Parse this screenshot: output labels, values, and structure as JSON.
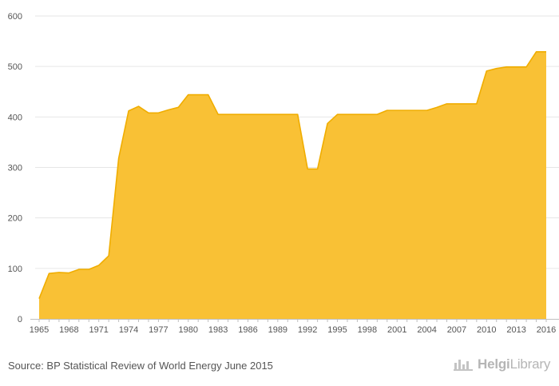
{
  "chart_data": {
    "type": "area",
    "x": [
      1965,
      1966,
      1967,
      1968,
      1969,
      1970,
      1971,
      1972,
      1973,
      1974,
      1975,
      1976,
      1977,
      1978,
      1979,
      1980,
      1981,
      1982,
      1983,
      1984,
      1985,
      1986,
      1987,
      1988,
      1989,
      1990,
      1991,
      1992,
      1993,
      1994,
      1995,
      1996,
      1997,
      1998,
      1999,
      2000,
      2001,
      2002,
      2003,
      2004,
      2005,
      2006,
      2007,
      2008,
      2009,
      2010,
      2011,
      2012,
      2013,
      2014,
      2015,
      2016
    ],
    "series": [
      {
        "values": [
          40,
          90,
          92,
          91,
          98,
          98,
          106,
          125,
          318,
          412,
          421,
          408,
          408,
          414,
          419,
          444,
          444,
          444,
          405,
          405,
          405,
          405,
          405,
          405,
          405,
          405,
          405,
          297,
          297,
          387,
          405,
          405,
          405,
          405,
          405,
          413,
          413,
          413,
          413,
          413,
          419,
          426,
          426,
          426,
          426,
          491,
          496,
          499,
          499,
          499,
          529,
          529
        ],
        "color": "#f9c135",
        "line_color": "#f0ad00"
      }
    ],
    "x_ticks": [
      "1965",
      "1968",
      "1971",
      "1974",
      "1977",
      "1980",
      "1983",
      "1986",
      "1989",
      "1992",
      "1995",
      "1998",
      "2001",
      "2004",
      "2007",
      "2010",
      "2013",
      "2016"
    ],
    "y_ticks": [
      "0",
      "100",
      "200",
      "300",
      "400",
      "500",
      "600"
    ],
    "ylim": [
      0,
      600
    ],
    "xlim": [
      1965,
      2016
    ],
    "grid": true
  },
  "footer": {
    "source": "Source: BP Statistical Review of World Energy June 2015",
    "logo_text_bold": "Helgi",
    "logo_text": "Library",
    "logo_icon": "factory-icon"
  }
}
